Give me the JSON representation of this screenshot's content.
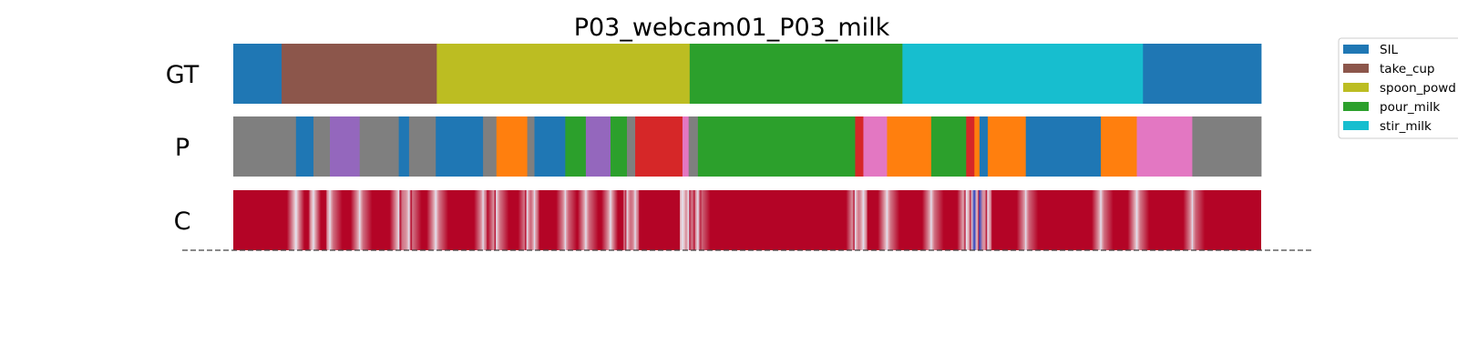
{
  "chart_data": {
    "type": "segmentation",
    "title": "P03_webcam01_P03_milk",
    "x_range": [
      0,
      1
    ],
    "colors": {
      "SIL": "#1f77b4",
      "take_cup": "#8c564b",
      "spoon_powder": "#bcbd22",
      "pour_milk": "#2ca02c",
      "stir_milk": "#17becf",
      "orange": "#ff7f0e",
      "red": "#d62728",
      "purple": "#9467bd",
      "pink": "#e377c2",
      "gray": "#7f7f7f"
    },
    "legend": {
      "placement": "upper-right-outside",
      "entries": [
        {
          "label": "SIL",
          "key": "SIL"
        },
        {
          "label": "take_cup",
          "key": "take_cup"
        },
        {
          "label": "spoon_powd",
          "key": "spoon_powder"
        },
        {
          "label": "pour_milk",
          "key": "pour_milk"
        },
        {
          "label": "stir_milk",
          "key": "stir_milk"
        }
      ]
    },
    "rows": [
      {
        "label": "GT",
        "segments": [
          {
            "start": 0.0,
            "end": 0.047,
            "key": "SIL"
          },
          {
            "start": 0.047,
            "end": 0.198,
            "key": "take_cup"
          },
          {
            "start": 0.198,
            "end": 0.444,
            "key": "spoon_powder"
          },
          {
            "start": 0.444,
            "end": 0.651,
            "key": "pour_milk"
          },
          {
            "start": 0.651,
            "end": 0.885,
            "key": "stir_milk"
          },
          {
            "start": 0.885,
            "end": 1.0,
            "key": "SIL"
          }
        ]
      },
      {
        "label": "P",
        "segments": [
          {
            "start": 0.0,
            "end": 0.061,
            "key": "gray"
          },
          {
            "start": 0.061,
            "end": 0.078,
            "key": "SIL"
          },
          {
            "start": 0.078,
            "end": 0.094,
            "key": "gray"
          },
          {
            "start": 0.094,
            "end": 0.123,
            "key": "purple"
          },
          {
            "start": 0.123,
            "end": 0.161,
            "key": "gray"
          },
          {
            "start": 0.161,
            "end": 0.171,
            "key": "SIL"
          },
          {
            "start": 0.171,
            "end": 0.197,
            "key": "gray"
          },
          {
            "start": 0.197,
            "end": 0.243,
            "key": "SIL"
          },
          {
            "start": 0.243,
            "end": 0.256,
            "key": "gray"
          },
          {
            "start": 0.256,
            "end": 0.286,
            "key": "orange"
          },
          {
            "start": 0.286,
            "end": 0.293,
            "key": "gray"
          },
          {
            "start": 0.293,
            "end": 0.323,
            "key": "SIL"
          },
          {
            "start": 0.323,
            "end": 0.343,
            "key": "pour_milk"
          },
          {
            "start": 0.343,
            "end": 0.367,
            "key": "purple"
          },
          {
            "start": 0.367,
            "end": 0.383,
            "key": "pour_milk"
          },
          {
            "start": 0.383,
            "end": 0.391,
            "key": "gray"
          },
          {
            "start": 0.391,
            "end": 0.437,
            "key": "red"
          },
          {
            "start": 0.437,
            "end": 0.443,
            "key": "pink"
          },
          {
            "start": 0.443,
            "end": 0.452,
            "key": "gray"
          },
          {
            "start": 0.452,
            "end": 0.605,
            "key": "pour_milk"
          },
          {
            "start": 0.605,
            "end": 0.613,
            "key": "red"
          },
          {
            "start": 0.613,
            "end": 0.636,
            "key": "pink"
          },
          {
            "start": 0.636,
            "end": 0.679,
            "key": "orange"
          },
          {
            "start": 0.679,
            "end": 0.713,
            "key": "pour_milk"
          },
          {
            "start": 0.713,
            "end": 0.721,
            "key": "red"
          },
          {
            "start": 0.721,
            "end": 0.726,
            "key": "orange"
          },
          {
            "start": 0.726,
            "end": 0.734,
            "key": "SIL"
          },
          {
            "start": 0.734,
            "end": 0.771,
            "key": "orange"
          },
          {
            "start": 0.771,
            "end": 0.844,
            "key": "SIL"
          },
          {
            "start": 0.844,
            "end": 0.879,
            "key": "orange"
          },
          {
            "start": 0.879,
            "end": 0.933,
            "key": "pink"
          },
          {
            "start": 0.933,
            "end": 1.0,
            "key": "gray"
          }
        ]
      },
      {
        "label": "C",
        "base_color": "#b40426",
        "low_color": "#3b4cc0",
        "dips": [
          {
            "x": 0.061,
            "level": 0.65
          },
          {
            "x": 0.078,
            "level": 0.6
          },
          {
            "x": 0.094,
            "level": 0.55
          },
          {
            "x": 0.123,
            "level": 0.55
          },
          {
            "x": 0.161,
            "level": 0.6
          },
          {
            "x": 0.171,
            "level": 0.6
          },
          {
            "x": 0.197,
            "level": 0.6
          },
          {
            "x": 0.243,
            "level": 0.5
          },
          {
            "x": 0.256,
            "level": 0.6
          },
          {
            "x": 0.286,
            "level": 0.5
          },
          {
            "x": 0.293,
            "level": 0.5
          },
          {
            "x": 0.323,
            "level": 0.5
          },
          {
            "x": 0.343,
            "level": 0.55
          },
          {
            "x": 0.367,
            "level": 0.55
          },
          {
            "x": 0.383,
            "level": 0.55
          },
          {
            "x": 0.391,
            "level": 0.5
          },
          {
            "x": 0.437,
            "level": 0.65
          },
          {
            "x": 0.443,
            "level": 0.65
          },
          {
            "x": 0.452,
            "level": 0.55
          },
          {
            "x": 0.605,
            "level": 0.6
          },
          {
            "x": 0.613,
            "level": 0.6
          },
          {
            "x": 0.636,
            "level": 0.6
          },
          {
            "x": 0.679,
            "level": 0.55
          },
          {
            "x": 0.713,
            "level": 0.7
          },
          {
            "x": 0.721,
            "level": 0.8
          },
          {
            "x": 0.726,
            "level": 0.75
          },
          {
            "x": 0.734,
            "level": 0.6
          },
          {
            "x": 0.771,
            "level": 0.5
          },
          {
            "x": 0.844,
            "level": 0.55
          },
          {
            "x": 0.879,
            "level": 0.6
          },
          {
            "x": 0.933,
            "level": 0.5
          }
        ]
      }
    ]
  }
}
